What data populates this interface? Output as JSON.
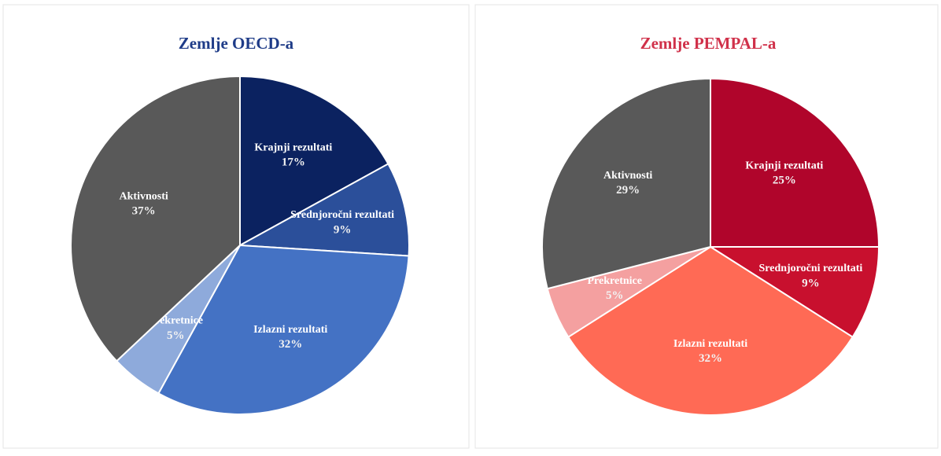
{
  "chart_data": [
    {
      "type": "pie",
      "title": "Zemlje OECD-a",
      "title_color": "#1f3c88",
      "categories": [
        "Krajnji rezultati",
        "Srednjoročni rezultati",
        "Izlazni rezultati",
        "Prekretnice",
        "Aktivnosti"
      ],
      "values": [
        17,
        9,
        32,
        5,
        37
      ],
      "value_labels": [
        "17%",
        "9%",
        "32%",
        "5%",
        "37%"
      ],
      "colors": [
        "#0b2260",
        "#2b4f9a",
        "#4472c4",
        "#8eaadb",
        "#595959"
      ]
    },
    {
      "type": "pie",
      "title": "Zemlje PEMPAL-a",
      "title_color": "#d0314a",
      "categories": [
        "Krajnji rezultati",
        "Srednjoročni rezultati",
        "Izlazni rezultati",
        "Prekretnice",
        "Aktivnosti"
      ],
      "values": [
        25,
        9,
        32,
        5,
        29
      ],
      "value_labels": [
        "25%",
        "9%",
        "32%",
        "5%",
        "29%"
      ],
      "colors": [
        "#b0052b",
        "#c8102e",
        "#ff6a55",
        "#f4a0a0",
        "#595959"
      ]
    }
  ]
}
